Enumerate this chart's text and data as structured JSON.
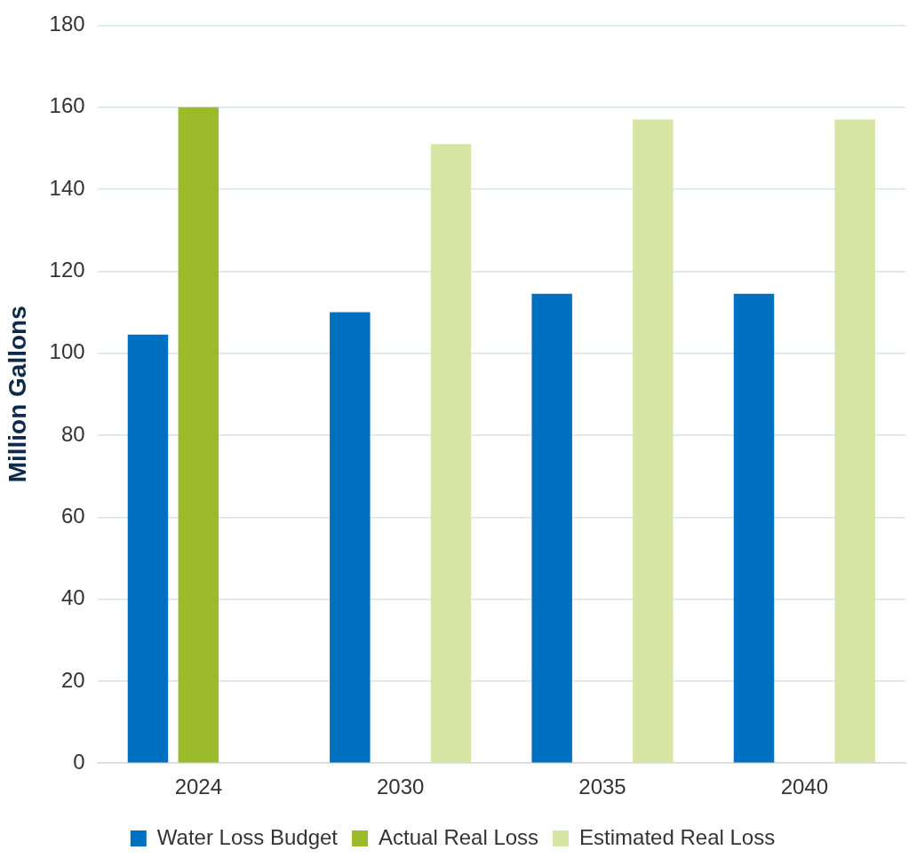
{
  "chart_data": {
    "type": "bar",
    "ylabel": "Million Gallons",
    "categories": [
      "2024",
      "2030",
      "2035",
      "2040"
    ],
    "series": [
      {
        "name": "Water Loss Budget",
        "color": "#0070c0",
        "values": [
          104.5,
          110,
          114.5,
          114.5
        ]
      },
      {
        "name": "Actual Real Loss",
        "color": "#9bbb2c",
        "values": [
          160,
          null,
          null,
          null
        ]
      },
      {
        "name": "Estimated Real Loss",
        "color": "#d6e5a3",
        "values": [
          null,
          151,
          157,
          157
        ]
      }
    ],
    "ylim": [
      0,
      180
    ],
    "yticks": [
      0,
      20,
      40,
      60,
      80,
      100,
      120,
      140,
      160,
      180
    ],
    "grid": "y",
    "legend": "bottom"
  }
}
